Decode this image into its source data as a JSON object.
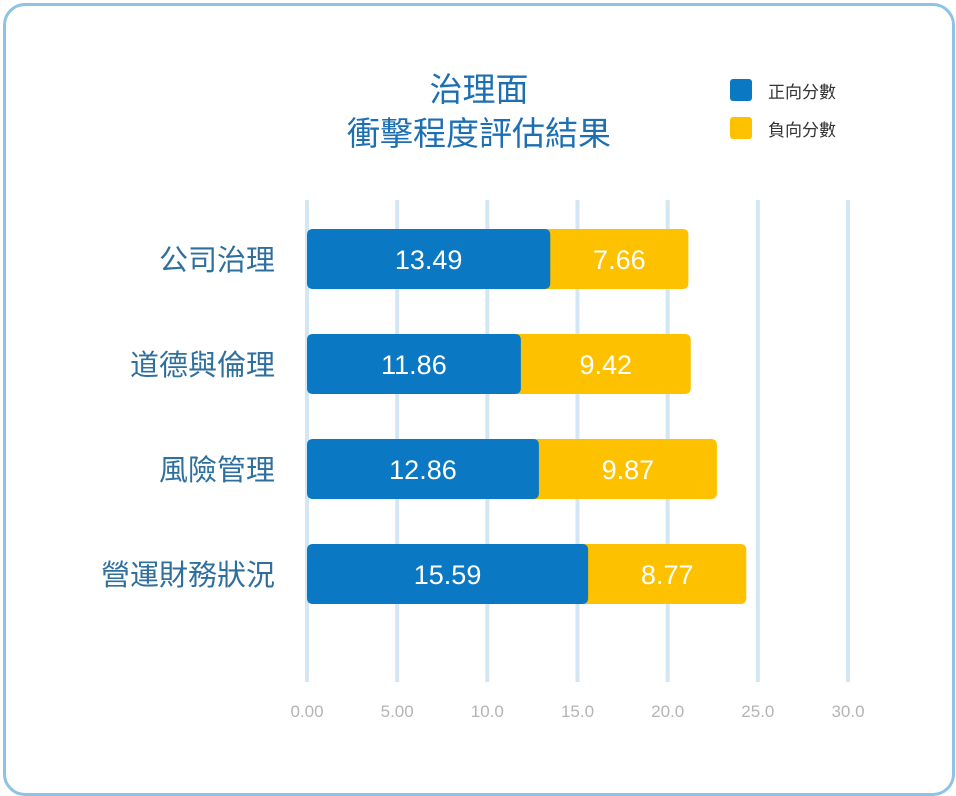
{
  "colors": {
    "positive": "#0a78c2",
    "negative": "#fec100",
    "title": "#1c6fb2",
    "category_label": "#2f6f9e",
    "grid": "#d3e6f3",
    "tick": "#b4b4b4",
    "frame": "#8cc3e6"
  },
  "chart_data": {
    "type": "bar",
    "orientation": "horizontal",
    "stacked": true,
    "title_lines": [
      "治理面",
      "衝擊程度評估結果"
    ],
    "categories": [
      "公司治理",
      "道德與倫理",
      "風險管理",
      "營運財務狀況"
    ],
    "series": [
      {
        "name": "正向分數",
        "values": [
          13.49,
          11.86,
          12.86,
          15.59
        ]
      },
      {
        "name": "負向分數",
        "values": [
          7.66,
          9.42,
          9.87,
          8.77
        ]
      }
    ],
    "xlim": [
      0,
      30
    ],
    "x_ticks": [
      "0.00",
      "5.00",
      "10.0",
      "15.0",
      "20.0",
      "25.0",
      "30.0"
    ],
    "grid": "vertical",
    "legend": "top-right"
  }
}
